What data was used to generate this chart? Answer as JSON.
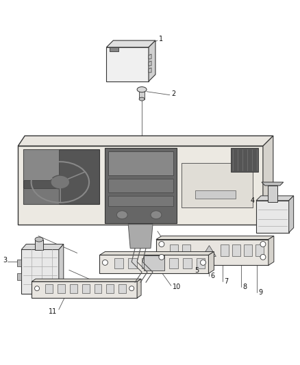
{
  "background_color": "#ffffff",
  "fig_width": 4.38,
  "fig_height": 5.33,
  "dpi": 100,
  "line_color": "#333333",
  "label_fontsize": 7,
  "label_color": "#111111"
}
